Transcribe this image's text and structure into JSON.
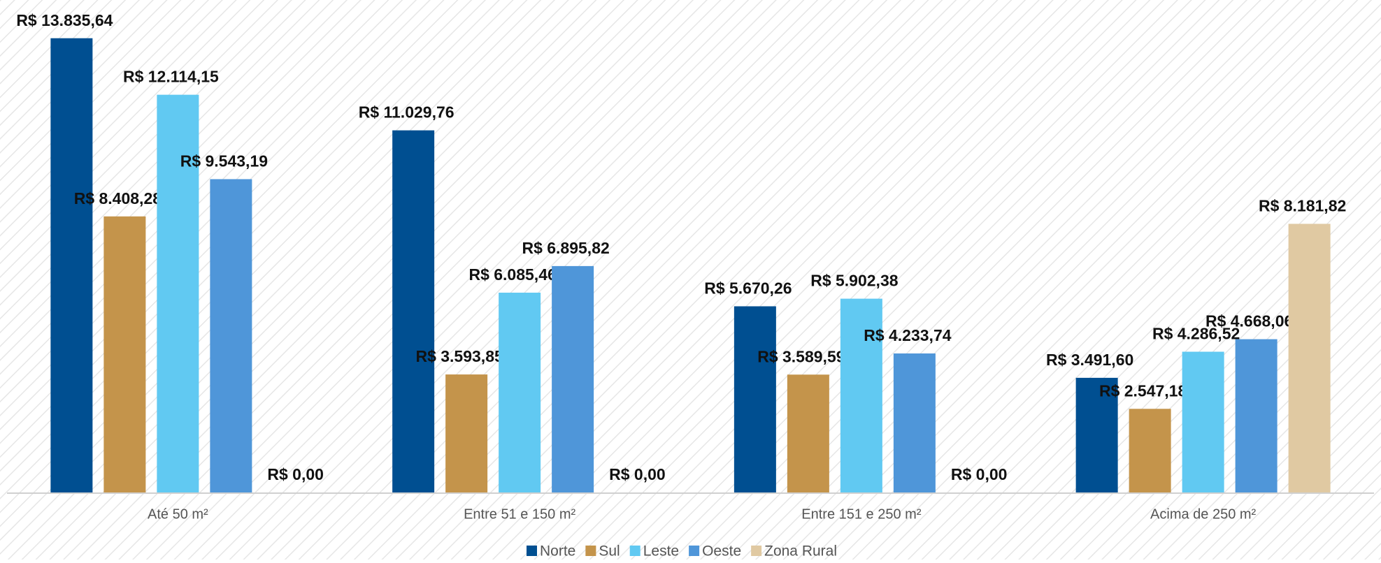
{
  "chart_data": {
    "type": "bar",
    "categories": [
      "Até 50 m²",
      "Entre 51 e 150 m²",
      "Entre 151 e 250 m²",
      "Acima de 250 m²"
    ],
    "series": [
      {
        "name": "Norte",
        "color": "#004f91",
        "values": [
          13835.64,
          11029.76,
          5670.26,
          3491.6
        ],
        "value_labels": [
          "R$ 13.835,64",
          "R$ 11.029,76",
          "R$ 5.670,26",
          "R$ 3.491,60"
        ]
      },
      {
        "name": "Sul",
        "color": "#c4944b",
        "values": [
          8408.28,
          3593.85,
          3589.59,
          2547.18
        ],
        "value_labels": [
          "R$ 8.408,28",
          "R$ 3.593,85",
          "R$ 3.589,59",
          "R$ 2.547,18"
        ]
      },
      {
        "name": "Leste",
        "color": "#61c9f2",
        "values": [
          12114.15,
          6085.46,
          5902.38,
          4286.52
        ],
        "value_labels": [
          "R$ 12.114,15",
          "R$ 6.085,46",
          "R$ 5.902,38",
          "R$ 4.286,52"
        ]
      },
      {
        "name": "Oeste",
        "color": "#4f96d9",
        "values": [
          9543.19,
          6895.82,
          4233.74,
          4668.06
        ],
        "value_labels": [
          "R$ 9.543,19",
          "R$ 6.895,82",
          "R$ 4.233,74",
          "R$ 4.668,06"
        ]
      },
      {
        "name": "Zona Rural",
        "color": "#e0c9a2",
        "values": [
          0,
          0,
          0,
          8181.82
        ],
        "value_labels": [
          "R$ 0,00",
          "R$ 0,00",
          "R$ 0,00",
          "R$ 8.181,82"
        ]
      }
    ],
    "ylim": [
      0,
      15000
    ],
    "legend": "bottom"
  }
}
